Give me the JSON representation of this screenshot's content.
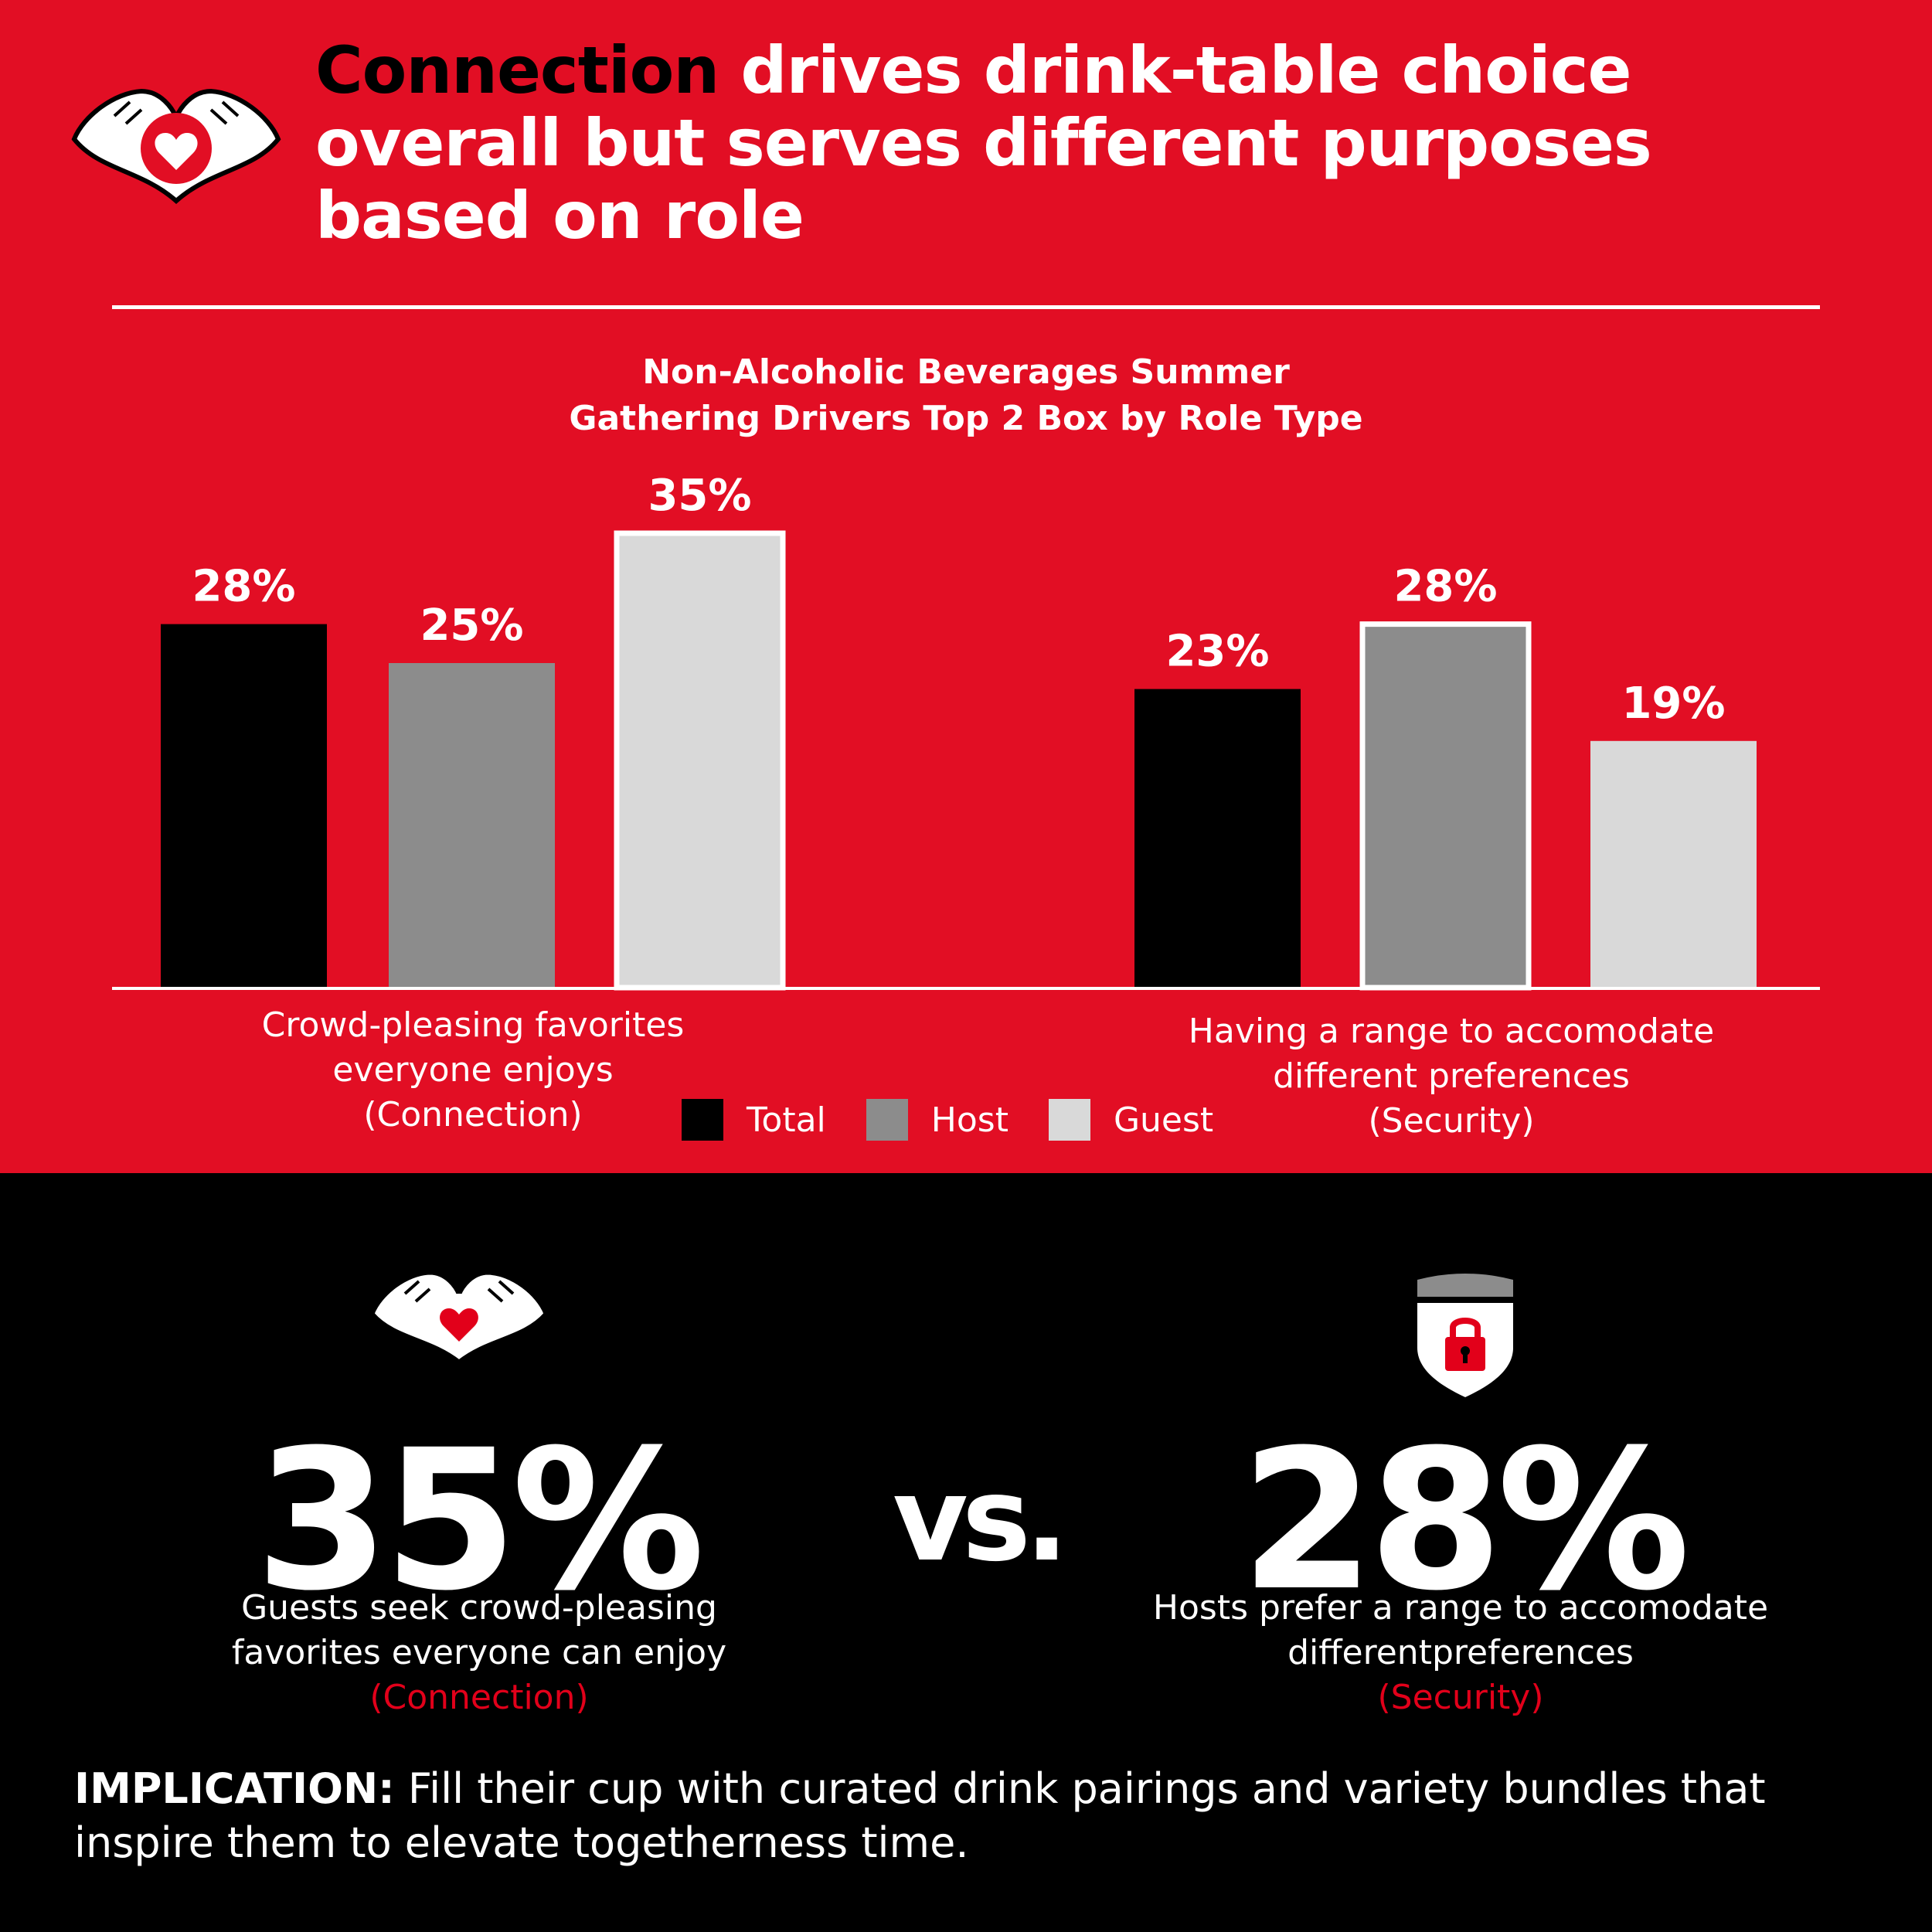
{
  "colors": {
    "brand_red": "#e20e24",
    "black": "#000000",
    "host_gray": "#8c8c8c",
    "guest_gray": "#d9d9d9",
    "accent_red": "#e2001a",
    "white": "#ffffff"
  },
  "header": {
    "icon": "heart-hands-icon",
    "headline_strong": "Connection",
    "headline_rest": " drives drink-table choice overall but serves different purposes based on role"
  },
  "chart_data": {
    "type": "bar",
    "title": "Non-Alcoholic Beverages Summer\nGathering Drivers Top 2 Box by Role Type",
    "categories": [
      "Crowd-pleasing favorites\neveryone enjoys\n(Connection)",
      "Having a range to accomodate\ndifferent preferences\n(Security)"
    ],
    "series": [
      {
        "name": "Total",
        "values": [
          28,
          23
        ],
        "value_labels": [
          "28%",
          "23%"
        ],
        "color": "#000000"
      },
      {
        "name": "Host",
        "values": [
          25,
          28
        ],
        "value_labels": [
          "25%",
          "28%"
        ],
        "color": "#8c8c8c"
      },
      {
        "name": "Guest",
        "values": [
          35,
          19
        ],
        "value_labels": [
          "35%",
          "19%"
        ],
        "color": "#d9d9d9"
      }
    ],
    "highlighted_bars": [
      [
        2,
        0
      ],
      [
        1,
        1
      ]
    ],
    "ylim": [
      0,
      40
    ],
    "grid": false,
    "legend_position": "bottom-center"
  },
  "legend": {
    "items": [
      {
        "label": "Total",
        "color": "#000000"
      },
      {
        "label": "Host",
        "color": "#8c8c8c"
      },
      {
        "label": "Guest",
        "color": "#d9d9d9"
      }
    ]
  },
  "stats": {
    "left": {
      "icon": "heart-hands-icon",
      "value": "35%",
      "description": "Guests seek crowd-pleasing favorites everyone can enjoy",
      "tag": "(Connection)"
    },
    "vs": "vs.",
    "right": {
      "icon": "lock-shield-icon",
      "value": "28%",
      "description": "Hosts prefer a range to accomodate differentpreferences",
      "tag": "(Security)"
    }
  },
  "implication": {
    "label": "IMPLICATION:",
    "text": " Fill their cup with curated drink pairings and variety bundles that inspire them to elevate togetherness time."
  }
}
